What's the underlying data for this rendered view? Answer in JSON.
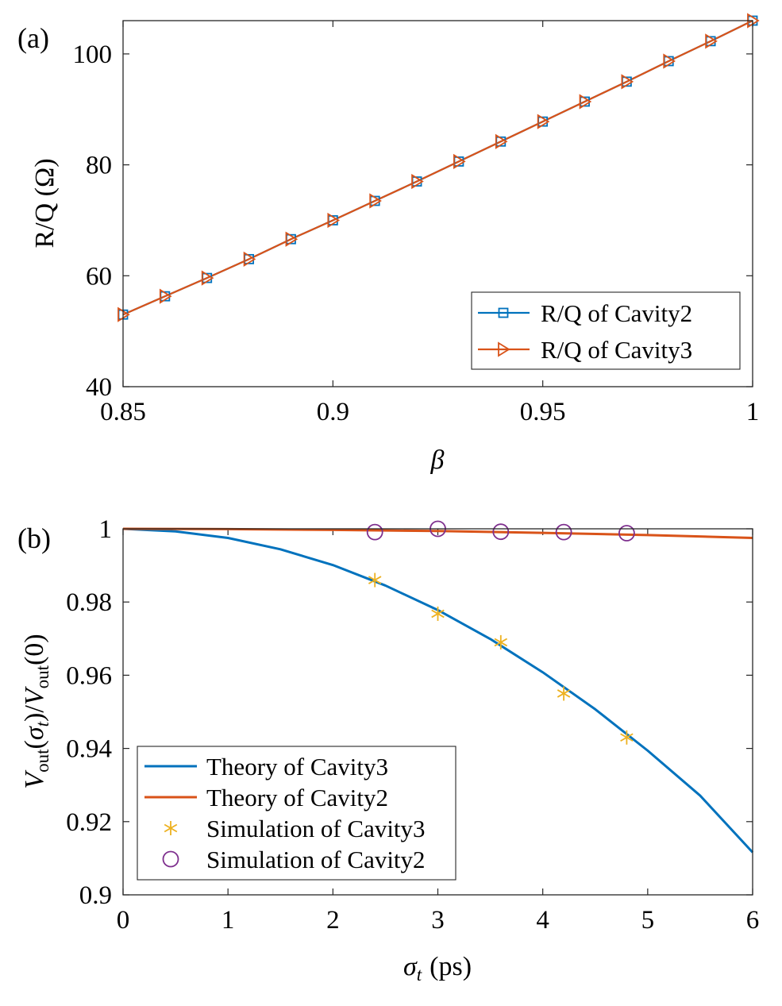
{
  "chart_data": [
    {
      "panel": "(a)",
      "type": "line",
      "title": "",
      "xlabel": "β",
      "ylabel": "R/Q (Ω)",
      "xlim": [
        0.85,
        1.0
      ],
      "ylim": [
        40,
        106
      ],
      "xticks": [
        0.85,
        0.9,
        0.95,
        1.0
      ],
      "xtick_labels": [
        "0.85",
        "0.9",
        "0.95",
        "1"
      ],
      "yticks": [
        40,
        60,
        80,
        100
      ],
      "ytick_labels": [
        "40",
        "60",
        "80",
        "100"
      ],
      "legend_position": "bottom-right",
      "x": [
        0.85,
        0.86,
        0.87,
        0.88,
        0.89,
        0.9,
        0.91,
        0.92,
        0.93,
        0.94,
        0.95,
        0.96,
        0.97,
        0.98,
        0.99,
        1.0
      ],
      "series": [
        {
          "name": "R/Q of Cavity2",
          "color": "#0072BD",
          "marker": "square",
          "values": [
            53.0,
            56.3,
            59.6,
            63.0,
            66.6,
            70.0,
            73.5,
            77.0,
            80.6,
            84.2,
            87.8,
            91.4,
            95.0,
            98.7,
            102.3,
            106.0
          ]
        },
        {
          "name": "R/Q of Cavity3",
          "color": "#D95319",
          "marker": "triangle-right",
          "values": [
            53.0,
            56.3,
            59.6,
            63.0,
            66.6,
            70.0,
            73.5,
            77.0,
            80.6,
            84.2,
            87.8,
            91.4,
            95.0,
            98.7,
            102.3,
            106.0
          ]
        }
      ]
    },
    {
      "panel": "(b)",
      "type": "line",
      "title": "",
      "xlabel_symbol": "σ",
      "xlabel_sub": "t",
      "xlabel_unit": "(ps)",
      "ylabel_parts": {
        "v": "V",
        "out": "out",
        "sigma": "σ",
        "t": "t",
        "zero": "0"
      },
      "xlim": [
        0,
        6
      ],
      "ylim": [
        0.9,
        1.0
      ],
      "xticks": [
        0,
        1,
        2,
        3,
        4,
        5,
        6
      ],
      "xtick_labels": [
        "0",
        "1",
        "2",
        "3",
        "4",
        "5",
        "6"
      ],
      "yticks": [
        0.9,
        0.92,
        0.94,
        0.96,
        0.98,
        1.0
      ],
      "ytick_labels": [
        "0.9",
        "0.92",
        "0.94",
        "0.96",
        "0.98",
        "1"
      ],
      "legend_position": "bottom-left",
      "series": [
        {
          "name": "Theory of Cavity3",
          "color": "#0072BD",
          "style": "line",
          "x": [
            0,
            0.5,
            1,
            1.5,
            2,
            2.5,
            3,
            3.5,
            4,
            4.5,
            5,
            5.5,
            6
          ],
          "values": [
            1.0,
            0.9993,
            0.9975,
            0.9944,
            0.9901,
            0.9845,
            0.9778,
            0.9699,
            0.9608,
            0.9507,
            0.9394,
            0.9271,
            0.9116
          ]
        },
        {
          "name": "Theory of Cavity2",
          "color": "#D95319",
          "style": "line",
          "x": [
            0,
            1,
            2,
            3,
            4,
            5,
            6
          ],
          "values": [
            1.0,
            0.99993,
            0.9997,
            0.9994,
            0.9989,
            0.9983,
            0.9975
          ]
        },
        {
          "name": "Simulation of Cavity3",
          "color": "#EDB120",
          "style": "marker",
          "marker": "asterisk",
          "x": [
            2.4,
            3.0,
            3.6,
            4.2,
            4.8
          ],
          "values": [
            0.986,
            0.9768,
            0.969,
            0.955,
            0.943
          ]
        },
        {
          "name": "Simulation of Cavity2",
          "color": "#7E2F8E",
          "style": "marker",
          "marker": "circle",
          "x": [
            2.4,
            3.0,
            3.6,
            4.2,
            4.8
          ],
          "values": [
            0.9991,
            1.0,
            0.9992,
            0.9991,
            0.9988
          ]
        }
      ]
    }
  ]
}
